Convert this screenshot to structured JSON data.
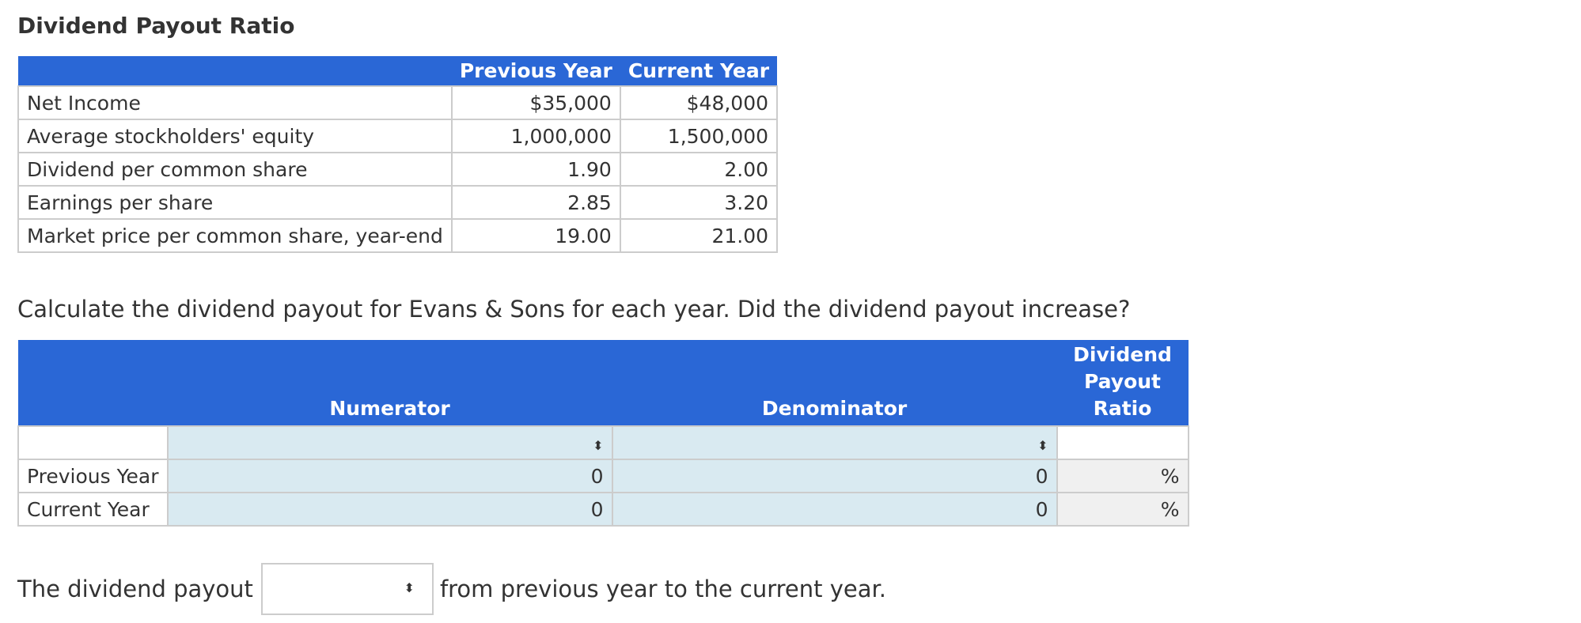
{
  "title": "Dividend Payout Ratio",
  "data_table": {
    "headers": [
      "",
      "Previous Year",
      "Current Year"
    ],
    "rows": [
      {
        "label": "Net Income",
        "prev": "$35,000",
        "curr": "$48,000"
      },
      {
        "label": "Average stockholders' equity",
        "prev": "1,000,000",
        "curr": "1,500,000"
      },
      {
        "label": "Dividend per common share",
        "prev": "1.90",
        "curr": "2.00"
      },
      {
        "label": "Earnings per share",
        "prev": "2.85",
        "curr": "3.20"
      },
      {
        "label": "Market price per common share, year-end",
        "prev": "19.00",
        "curr": "21.00"
      }
    ]
  },
  "question": "Calculate the dividend payout for Evans & Sons for each year. Did the dividend payout increase?",
  "calc_table": {
    "headers": {
      "numerator": "Numerator",
      "denominator": "Denominator",
      "ratio_line1": "Dividend",
      "ratio_line2": "Payout",
      "ratio_line3": "Ratio"
    },
    "rows": [
      {
        "label": "Previous Year",
        "numerator": "0",
        "denominator": "0",
        "unit": "%"
      },
      {
        "label": "Current Year",
        "numerator": "0",
        "denominator": "0",
        "unit": "%"
      }
    ],
    "selector_glyph": "⬍"
  },
  "sentence": {
    "before": "The dividend payout",
    "after": "from previous year to the current year.",
    "selected": ""
  }
}
